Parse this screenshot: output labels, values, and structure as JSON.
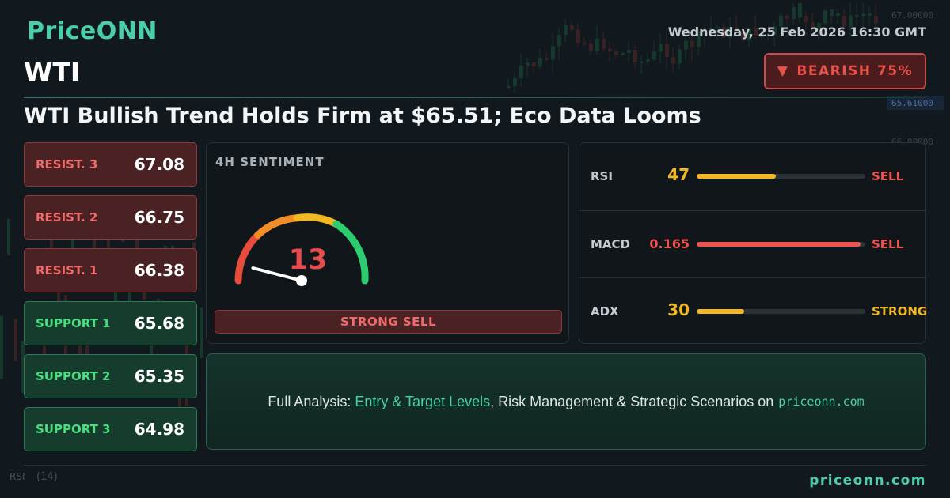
{
  "brand": {
    "logo_text": "PriceONN",
    "footer_site": "priceonn.com"
  },
  "header": {
    "datetime": "Wednesday, 25 Feb 2026 16:30 GMT",
    "symbol": "WTI",
    "bias_badge": {
      "arrow": "▼",
      "label": "BEARISH 75%"
    },
    "headline": "WTI Bullish Trend Holds Firm at $65.51; Eco Data Looms"
  },
  "levels": [
    {
      "label": "RESIST. 3",
      "value": "67.08",
      "kind": "resistance"
    },
    {
      "label": "RESIST. 2",
      "value": "66.75",
      "kind": "resistance"
    },
    {
      "label": "RESIST. 1",
      "value": "66.38",
      "kind": "resistance"
    },
    {
      "label": "SUPPORT 1",
      "value": "65.68",
      "kind": "support"
    },
    {
      "label": "SUPPORT 2",
      "value": "65.35",
      "kind": "support"
    },
    {
      "label": "SUPPORT 3",
      "value": "64.98",
      "kind": "support"
    }
  ],
  "sentiment": {
    "title": "4H SENTIMENT",
    "value": "13",
    "gauge_level": 0.13,
    "verdict": "STRONG SELL"
  },
  "indicators": [
    {
      "name": "RSI",
      "value": "47",
      "signal": "SELL",
      "fill": 0.47,
      "color": "#f2b824",
      "signal_color": "#ef5350"
    },
    {
      "name": "MACD",
      "value": "0.165",
      "signal": "SELL",
      "fill": 0.97,
      "color": "#ef5350",
      "signal_color": "#ef5350"
    },
    {
      "name": "ADX",
      "value": "30",
      "signal": "STRONG",
      "fill": 0.28,
      "color": "#f2b824",
      "signal_color": "#f2b824"
    }
  ],
  "promo": {
    "prefix": "Full Analysis: ",
    "highlight": "Entry & Target Levels",
    "suffix": ", Risk Management & Strategic Scenarios on",
    "site": "priceonn.com"
  },
  "background_chart": {
    "price_labels": [
      "67.00000",
      "65.61000",
      "66.00000"
    ],
    "indicator_label": "RSI",
    "indicator_period": "(14)"
  },
  "colors": {
    "accent": "#49cfa9",
    "bearish": "#e5534b",
    "bullish": "#4ade80",
    "warning": "#f2b824"
  }
}
